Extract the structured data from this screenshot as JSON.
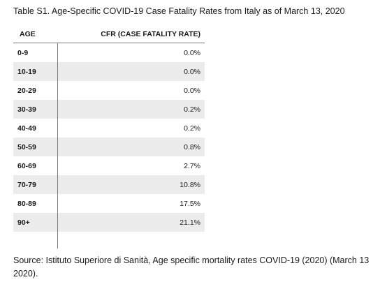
{
  "caption": "Table S1. Age-Specific COVID-19 Case Fatality Rates from Italy as of March 13, 2020",
  "table": {
    "headers": {
      "age": "AGE",
      "cfr": "CFR (CASE FATALITY RATE)"
    },
    "rows": [
      {
        "age": "0-9",
        "cfr": "0.0%"
      },
      {
        "age": "10-19",
        "cfr": "0.0%"
      },
      {
        "age": "20-29",
        "cfr": "0.0%"
      },
      {
        "age": "30-39",
        "cfr": "0.2%"
      },
      {
        "age": "40-49",
        "cfr": "0.2%"
      },
      {
        "age": "50-59",
        "cfr": "0.8%"
      },
      {
        "age": "60-69",
        "cfr": "2.7%"
      },
      {
        "age": "70-79",
        "cfr": "10.8%"
      },
      {
        "age": "80-89",
        "cfr": "17.5%"
      },
      {
        "age": "90+",
        "cfr": "21.1%"
      }
    ]
  },
  "source": "Source: Istituto Superiore di Sanità, Age specific mortality rates COVID-19 (2020) (March 13 2020)."
}
